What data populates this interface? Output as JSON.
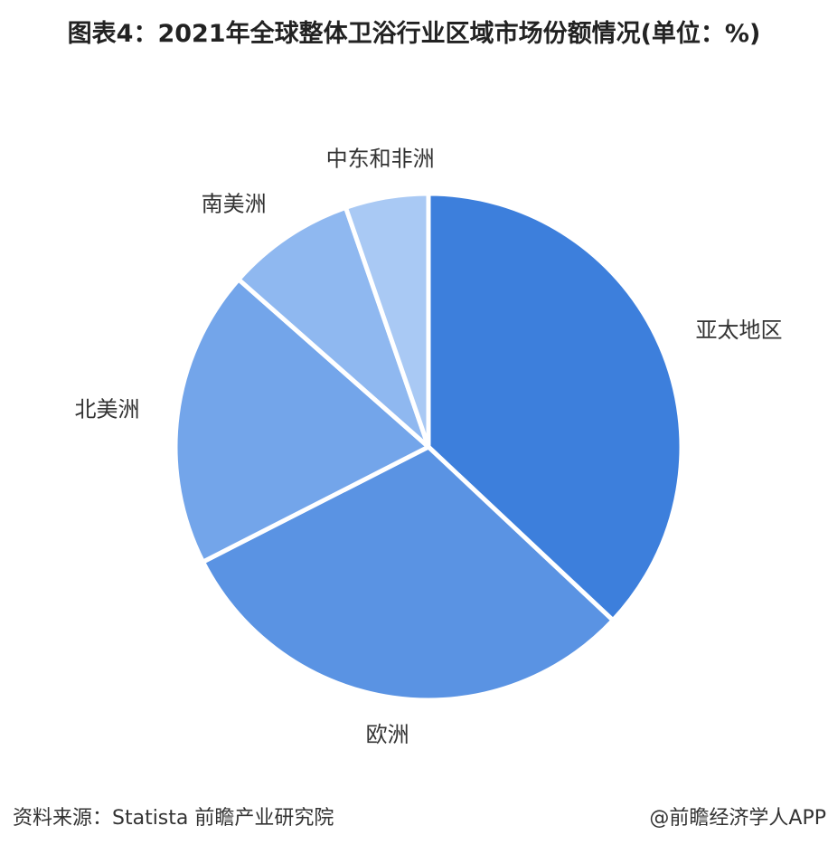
{
  "chart_data": {
    "type": "pie",
    "title": "图表4：2021年全球整体卫浴行业区域市场份额情况(单位：%)",
    "categories": [
      "亚太地区",
      "欧洲",
      "北美洲",
      "南美洲",
      "中东和非洲"
    ],
    "values": [
      37,
      30.5,
      19,
      8.2,
      5.3
    ],
    "colors": [
      "#3d7fdc",
      "#5a93e3",
      "#73a5ea",
      "#8fb8f0",
      "#a9c9f4"
    ],
    "source": "资料来源：Statista 前瞻产业研究院",
    "credit": "@前瞻经济学人APP"
  }
}
